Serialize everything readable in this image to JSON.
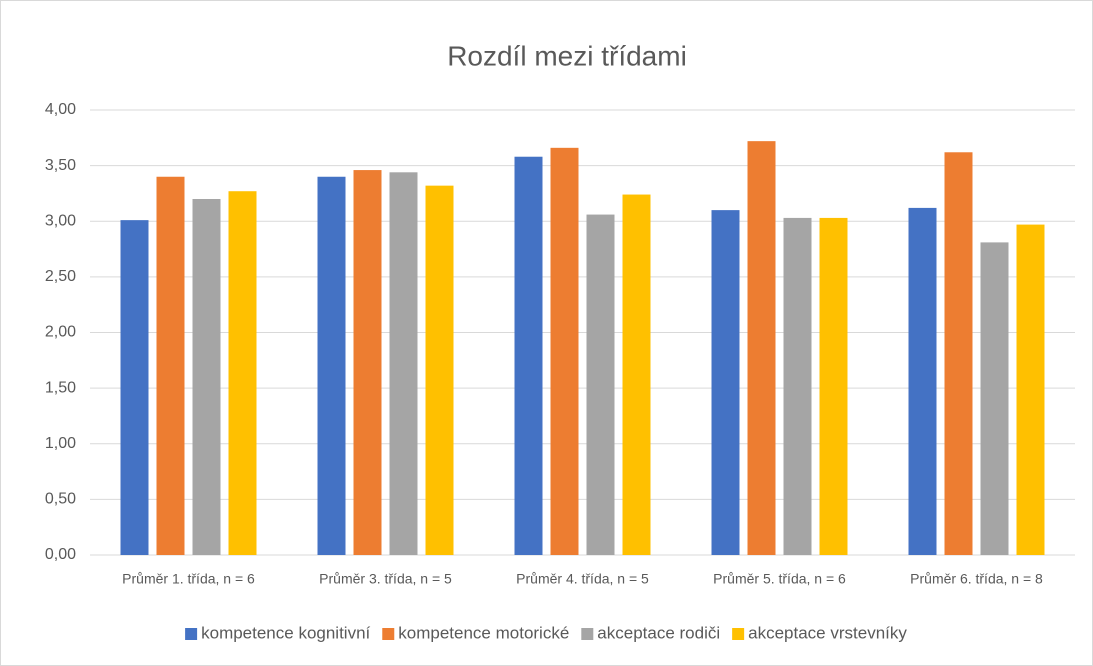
{
  "chart_data": {
    "type": "bar",
    "title": "Rozdíl mezi třídami",
    "categories": [
      "Průměr 1. třída, n = 6",
      "Průměr 3. třída, n = 5",
      "Průměr 4. třída, n = 5",
      "Průměr 5. třída, n = 6",
      "Průměr 6. třída, n = 8"
    ],
    "series": [
      {
        "name": "kompetence kognitivní",
        "color": "#4472c4",
        "values": [
          3.01,
          3.4,
          3.58,
          3.1,
          3.12
        ]
      },
      {
        "name": "kompetence motorické",
        "color": "#ed7d31",
        "values": [
          3.4,
          3.46,
          3.66,
          3.72,
          3.62
        ]
      },
      {
        "name": "akceptace rodiči",
        "color": "#a5a5a5",
        "values": [
          3.2,
          3.44,
          3.06,
          3.03,
          2.81
        ]
      },
      {
        "name": "akceptace vrstevníky",
        "color": "#ffc000",
        "values": [
          3.27,
          3.32,
          3.24,
          3.03,
          2.97
        ]
      }
    ],
    "ylim": [
      0,
      4
    ],
    "yticks": [
      {
        "value": 0,
        "label": "0,00"
      },
      {
        "value": 0.5,
        "label": "0,50"
      },
      {
        "value": 1,
        "label": "1,00"
      },
      {
        "value": 1.5,
        "label": "1,50"
      },
      {
        "value": 2,
        "label": "2,00"
      },
      {
        "value": 2.5,
        "label": "2,50"
      },
      {
        "value": 3,
        "label": "3,00"
      },
      {
        "value": 3.5,
        "label": "3,50"
      },
      {
        "value": 4,
        "label": "4,00"
      }
    ],
    "grid": true,
    "legend": "bottom"
  }
}
